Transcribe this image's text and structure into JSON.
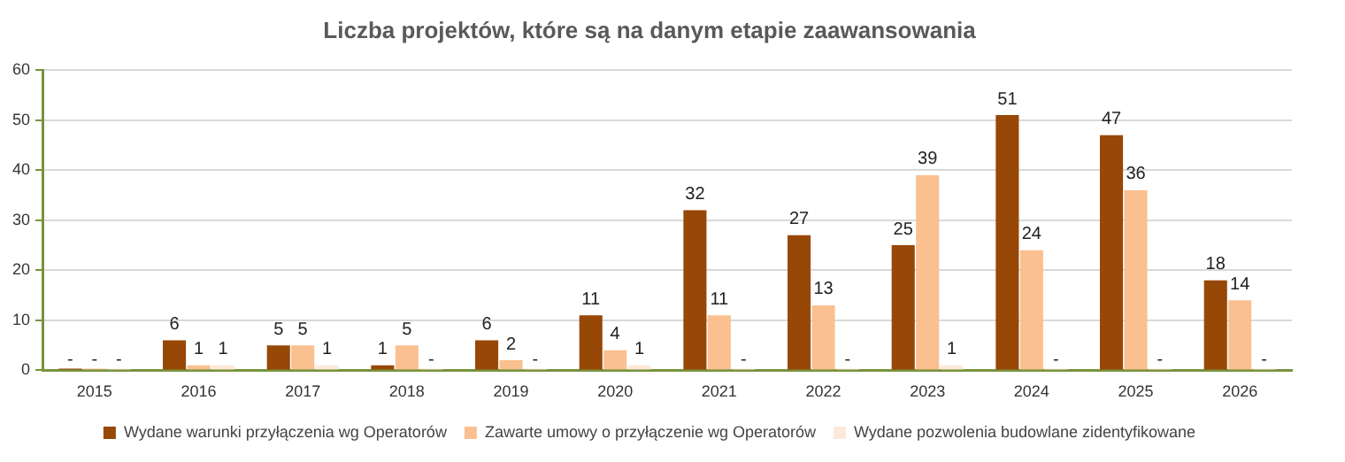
{
  "chart_data": {
    "type": "bar",
    "title": "Liczba projektów, które są na danym etapie zaawansowania",
    "categories": [
      "2015",
      "2016",
      "2017",
      "2018",
      "2019",
      "2020",
      "2021",
      "2022",
      "2023",
      "2024",
      "2025",
      "2026"
    ],
    "series": [
      {
        "name": "Wydane warunki przyłączenia wg Operatorów",
        "color": "#974706",
        "values": [
          0,
          6,
          5,
          1,
          6,
          11,
          32,
          27,
          25,
          51,
          47,
          18
        ],
        "value_labels": [
          "-",
          "6",
          "5",
          "1",
          "6",
          "11",
          "32",
          "27",
          "25",
          "51",
          "47",
          "18"
        ]
      },
      {
        "name": "Zawarte umowy o przyłączenie wg Operatorów",
        "color": "#fac090",
        "values": [
          0,
          1,
          5,
          5,
          2,
          4,
          11,
          13,
          39,
          24,
          36,
          14
        ],
        "value_labels": [
          "-",
          "1",
          "5",
          "5",
          "2",
          "4",
          "11",
          "13",
          "39",
          "24",
          "36",
          "14"
        ]
      },
      {
        "name": "Wydane pozwolenia budowlane zidentyfikowane",
        "color": "#fde9d9",
        "values": [
          0,
          1,
          1,
          0,
          0,
          1,
          0,
          0,
          1,
          0,
          0,
          0
        ],
        "value_labels": [
          "-",
          "1",
          "1",
          "-",
          "-",
          "1",
          "-",
          "-",
          "1",
          "-",
          "-",
          "-"
        ]
      }
    ],
    "ylim": [
      0,
      60
    ],
    "yticks": [
      0,
      10,
      20,
      30,
      40,
      50,
      60
    ],
    "grid": "y",
    "legend": "bottom"
  }
}
